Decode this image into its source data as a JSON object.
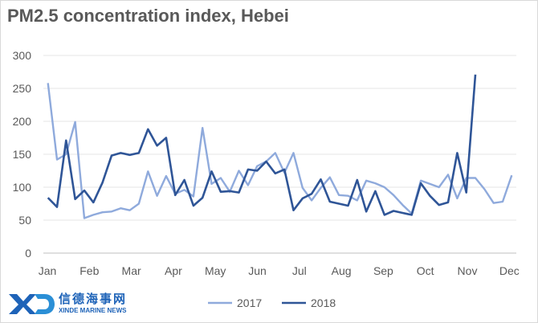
{
  "chart_data": {
    "type": "line",
    "title": "PM2.5 concentration index, Hebei",
    "xlabel": "",
    "ylabel": "",
    "ylim": [
      0,
      300
    ],
    "yticks": [
      0,
      50,
      100,
      150,
      200,
      250,
      300
    ],
    "x_tick_labels": [
      "Jan",
      "Feb",
      "Mar",
      "Apr",
      "May",
      "Jun",
      "Jul",
      "Aug",
      "Sep",
      "Oct",
      "Nov",
      "Dec"
    ],
    "points_per_year": 52,
    "grid": "horizontal",
    "legend_position": "bottom",
    "series": [
      {
        "name": "2017",
        "color": "#8faadc",
        "values": [
          258,
          142,
          150,
          199,
          53,
          58,
          62,
          63,
          68,
          65,
          75,
          124,
          87,
          117,
          90,
          96,
          86,
          190,
          105,
          114,
          93,
          125,
          103,
          132,
          139,
          152,
          122,
          152,
          99,
          80,
          99,
          115,
          88,
          87,
          80,
          110,
          106,
          100,
          88,
          73,
          60,
          110,
          105,
          100,
          119,
          83,
          114,
          114,
          97,
          76,
          78,
          118
        ]
      },
      {
        "name": "2018",
        "color": "#2f5597",
        "values": [
          84,
          70,
          171,
          82,
          95,
          77,
          107,
          148,
          152,
          149,
          152,
          188,
          163,
          175,
          88,
          111,
          72,
          84,
          124,
          93,
          94,
          92,
          127,
          125,
          139,
          121,
          127,
          65,
          83,
          90,
          112,
          78,
          75,
          72,
          111,
          63,
          94,
          58,
          64,
          61,
          58,
          106,
          87,
          73,
          77,
          152,
          92,
          271
        ]
      }
    ]
  },
  "watermark": {
    "logo_text": "XD",
    "chinese": "信德海事网",
    "english": "XINDE MARINE NEWS"
  }
}
